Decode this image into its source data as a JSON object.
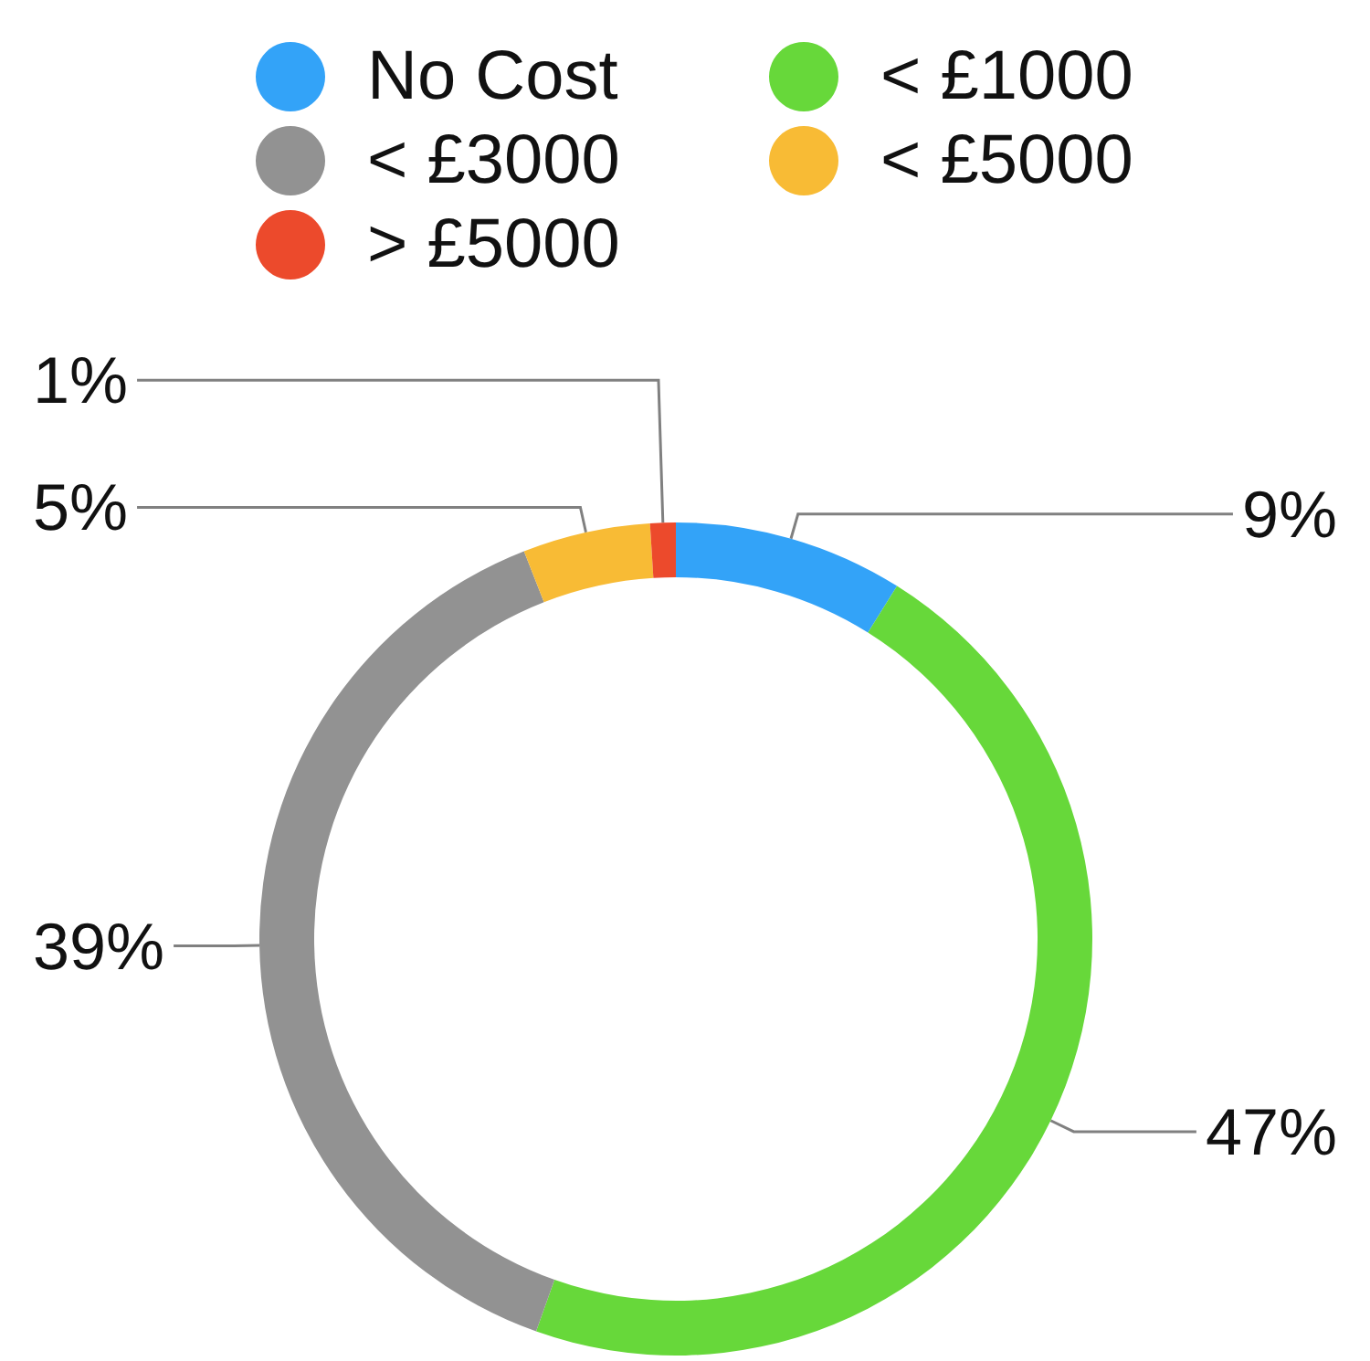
{
  "chart_data": {
    "type": "donut",
    "categories": [
      "No Cost",
      "< £1000",
      "< £3000",
      "< £5000",
      "> £5000"
    ],
    "values": [
      9,
      47,
      39,
      5,
      1
    ],
    "colors": [
      "#33a3f8",
      "#67d83a",
      "#929292",
      "#f8bb35",
      "#ec4a2c"
    ],
    "value_labels": [
      "9%",
      "47%",
      "39%",
      "5%",
      "1%"
    ],
    "legend": "top"
  }
}
